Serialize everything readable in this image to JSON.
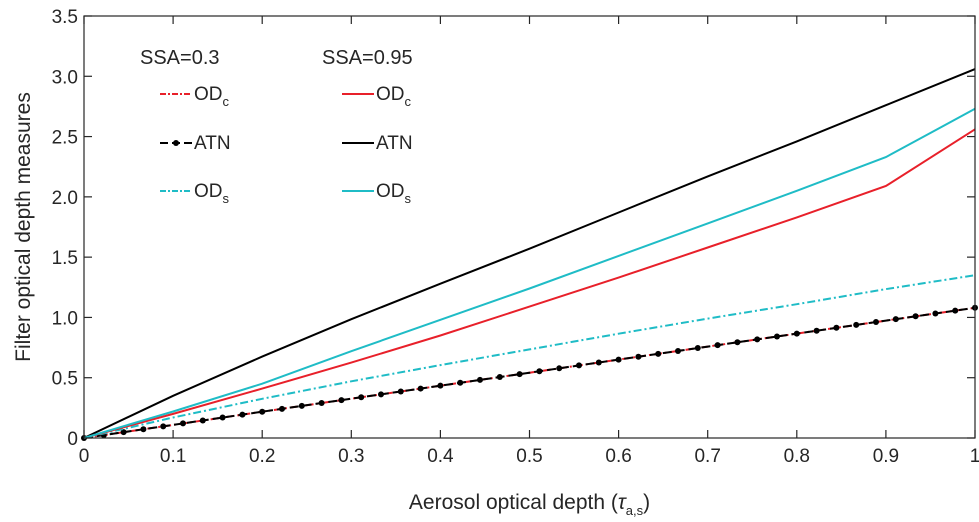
{
  "chart_data": {
    "type": "line",
    "xlabel": "Aerosol optical depth (",
    "xlabel_symbol": "τ",
    "xlabel_subscript": "a,s",
    "xlabel_close": ")",
    "ylabel": "Filter optical depth measures",
    "xlim": [
      0,
      1
    ],
    "ylim": [
      0,
      3.5
    ],
    "x_ticks": [
      0,
      0.1,
      0.2,
      0.3,
      0.4,
      0.5,
      0.6,
      0.7,
      0.8,
      0.9,
      1
    ],
    "x_tick_labels": [
      "0",
      "0.1",
      "0.2",
      "0.3",
      "0.4",
      "0.5",
      "0.6",
      "0.7",
      "0.8",
      "0.9",
      "1"
    ],
    "y_ticks": [
      0,
      0.5,
      1,
      1.5,
      2,
      2.5,
      3,
      3.5
    ],
    "y_tick_labels": [
      "0",
      "0.5",
      "1.0",
      "1.5",
      "2.0",
      "2.5",
      "3.0",
      "3.5"
    ],
    "grid": false,
    "legend_position": "top-left",
    "legend_groups": [
      {
        "title": "SSA=0.3",
        "entries": [
          {
            "base": "OD",
            "sub": "c",
            "series": 0
          },
          {
            "base": "ATN",
            "sub": "",
            "series": 1
          },
          {
            "base": "OD",
            "sub": "s",
            "series": 2
          }
        ]
      },
      {
        "title": "SSA=0.95",
        "entries": [
          {
            "base": "OD",
            "sub": "c",
            "series": 3
          },
          {
            "base": "ATN",
            "sub": "",
            "series": 4
          },
          {
            "base": "OD",
            "sub": "s",
            "series": 5
          }
        ]
      }
    ],
    "series": [
      {
        "color": "#e8202a",
        "dash": "8,3,2,3",
        "marker": false,
        "x": [
          0,
          0.1,
          0.2,
          0.3,
          0.4,
          0.5,
          0.6,
          0.7,
          0.8,
          0.9,
          1
        ],
        "y": [
          0,
          0.109,
          0.218,
          0.326,
          0.434,
          0.542,
          0.65,
          0.758,
          0.866,
          0.974,
          1.08
        ]
      },
      {
        "color": "#000000",
        "dash": "9,4",
        "marker": true,
        "x": [
          0,
          0.1,
          0.2,
          0.3,
          0.4,
          0.5,
          0.6,
          0.7,
          0.8,
          0.9,
          1
        ],
        "y": [
          0,
          0.109,
          0.218,
          0.326,
          0.434,
          0.542,
          0.65,
          0.758,
          0.866,
          0.974,
          1.08
        ]
      },
      {
        "color": "#1fbcc6",
        "dash": "8,3,2,3",
        "marker": false,
        "x": [
          0,
          0.1,
          0.2,
          0.3,
          0.4,
          0.5,
          0.6,
          0.7,
          0.8,
          0.9,
          1
        ],
        "y": [
          0,
          0.17,
          0.325,
          0.47,
          0.605,
          0.735,
          0.865,
          0.99,
          1.11,
          1.235,
          1.35
        ]
      },
      {
        "color": "#e8202a",
        "dash": "",
        "marker": false,
        "x": [
          0,
          0.1,
          0.2,
          0.3,
          0.4,
          0.5,
          0.6,
          0.7,
          0.8,
          0.9,
          1
        ],
        "y": [
          0,
          0.2,
          0.41,
          0.625,
          0.85,
          1.09,
          1.33,
          1.58,
          1.83,
          2.09,
          2.56
        ]
      },
      {
        "color": "#000000",
        "dash": "",
        "marker": false,
        "x": [
          0,
          0.1,
          0.2,
          0.3,
          0.4,
          0.5,
          0.6,
          0.7,
          0.8,
          0.9,
          1
        ],
        "y": [
          0,
          0.35,
          0.675,
          0.985,
          1.28,
          1.57,
          1.87,
          2.17,
          2.46,
          2.76,
          3.06
        ]
      },
      {
        "color": "#1fbcc6",
        "dash": "",
        "marker": false,
        "x": [
          0,
          0.1,
          0.2,
          0.3,
          0.4,
          0.5,
          0.6,
          0.7,
          0.8,
          0.9,
          1
        ],
        "y": [
          0,
          0.22,
          0.45,
          0.72,
          0.98,
          1.24,
          1.51,
          1.78,
          2.05,
          2.33,
          2.73
        ]
      }
    ]
  }
}
